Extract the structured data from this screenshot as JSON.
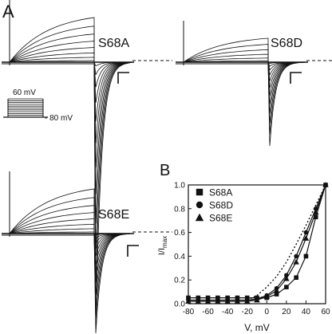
{
  "panels": {
    "a_label": "A",
    "b_label": "B"
  },
  "traces": [
    {
      "name": "S68A"
    },
    {
      "name": "S68D"
    },
    {
      "name": "S68E"
    }
  ],
  "protocol": {
    "top_label": "60 mV",
    "bottom_label": "- 80 mV"
  },
  "chart_data": {
    "type": "scatter",
    "xlabel": "V, mV",
    "ylabel_main": "I/I",
    "ylabel_sub": "max",
    "xlim": [
      -80,
      60
    ],
    "ylim": [
      0,
      1.0
    ],
    "xticks": [
      "-80",
      "-60",
      "-40",
      "-20",
      "0",
      "20",
      "40",
      "60"
    ],
    "yticks": [
      "0.0",
      "0.2",
      "0.4",
      "0.6",
      "0.8",
      "1.0"
    ],
    "legend_position": "top-left",
    "series": [
      {
        "name": "S68A",
        "marker": "square",
        "x": [
          -80,
          -70,
          -60,
          -50,
          -40,
          -30,
          -20,
          -10,
          0,
          10,
          20,
          30,
          40,
          50,
          60
        ],
        "y": [
          0.05,
          0.05,
          0.05,
          0.05,
          0.05,
          0.05,
          0.05,
          0.05,
          0.05,
          0.08,
          0.14,
          0.22,
          0.4,
          0.73,
          1.0
        ]
      },
      {
        "name": "S68D",
        "marker": "circle",
        "x": [
          -80,
          -70,
          -60,
          -50,
          -40,
          -30,
          -20,
          -10,
          0,
          10,
          20,
          30,
          40,
          50,
          60
        ],
        "y": [
          0.03,
          0.03,
          0.03,
          0.03,
          0.03,
          0.03,
          0.03,
          0.04,
          0.07,
          0.13,
          0.24,
          0.4,
          0.6,
          0.8,
          1.0
        ]
      },
      {
        "name": "S68E",
        "marker": "triangle",
        "x": [
          -80,
          -70,
          -60,
          -50,
          -40,
          -30,
          -20,
          -10,
          0,
          10,
          20,
          30,
          40,
          50,
          60
        ],
        "y": [
          0.02,
          0.02,
          0.02,
          0.02,
          0.02,
          0.02,
          0.02,
          0.03,
          0.06,
          0.11,
          0.21,
          0.35,
          0.55,
          0.77,
          1.0
        ]
      }
    ],
    "reference_curve": {
      "style": "dotted",
      "x": [
        -20,
        -10,
        0,
        10,
        20,
        30,
        40,
        50,
        60
      ],
      "y": [
        0.03,
        0.07,
        0.14,
        0.23,
        0.35,
        0.5,
        0.66,
        0.83,
        1.0
      ]
    }
  }
}
